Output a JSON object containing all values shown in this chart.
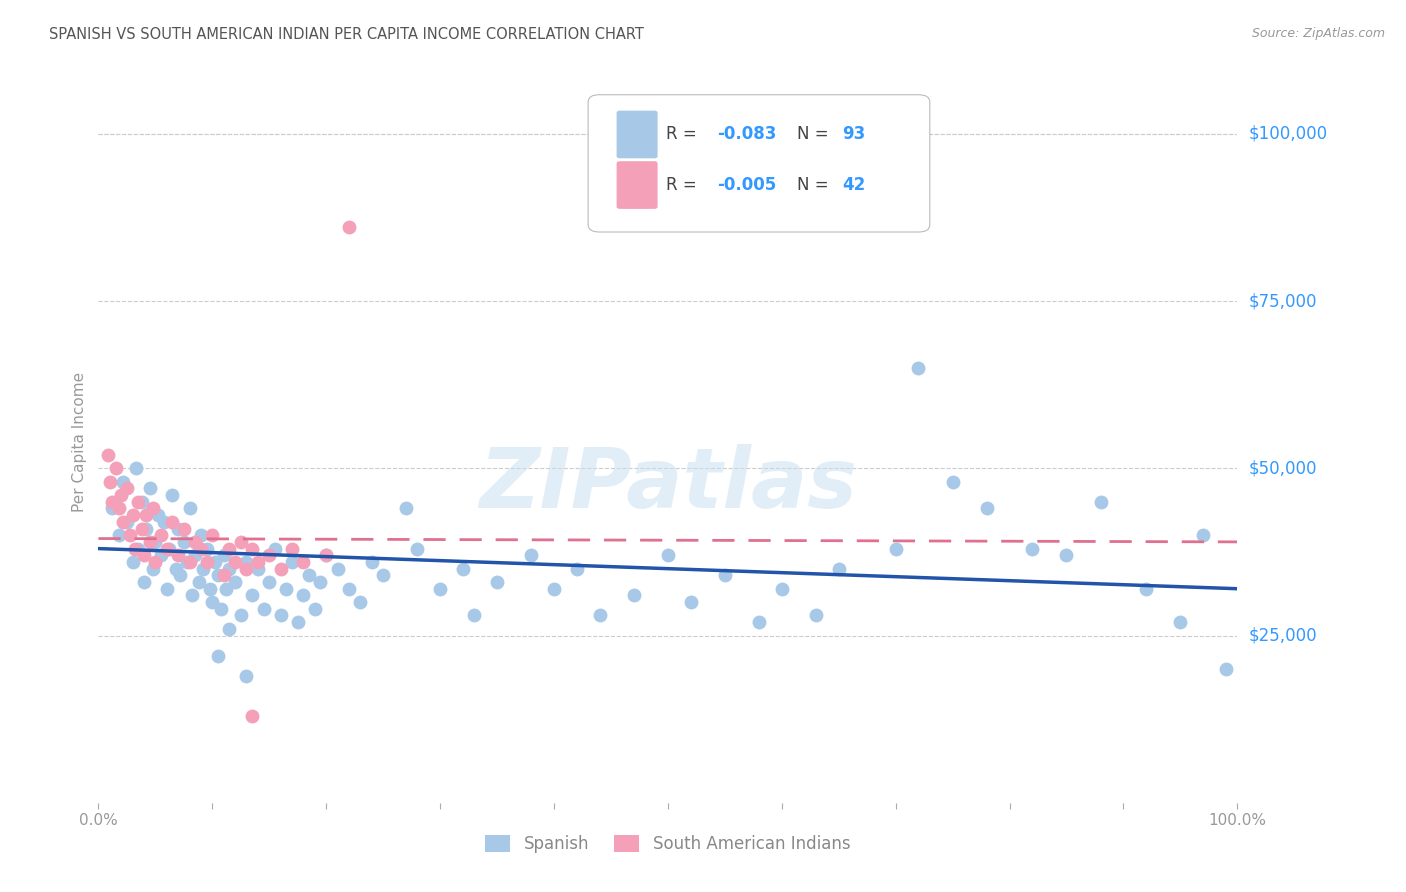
{
  "title": "SPANISH VS SOUTH AMERICAN INDIAN PER CAPITA INCOME CORRELATION CHART",
  "source": "Source: ZipAtlas.com",
  "ylabel": "Per Capita Income",
  "watermark": "ZIPatlas",
  "blue_color": "#a8c8e8",
  "pink_color": "#f4a0b8",
  "blue_line_color": "#2255aa",
  "pink_line_color": "#e07090",
  "axis_label_color": "#3399ff",
  "grid_color": "#cccccc",
  "ytick_labels": [
    "$25,000",
    "$50,000",
    "$75,000",
    "$100,000"
  ],
  "ytick_values": [
    25000,
    50000,
    75000,
    100000
  ],
  "ylim_max": 108000,
  "xlim": [
    0.0,
    1.0
  ],
  "blue_x": [
    0.012,
    0.018,
    0.022,
    0.025,
    0.03,
    0.033,
    0.035,
    0.038,
    0.04,
    0.042,
    0.045,
    0.048,
    0.05,
    0.052,
    0.055,
    0.058,
    0.06,
    0.062,
    0.065,
    0.068,
    0.07,
    0.072,
    0.075,
    0.078,
    0.08,
    0.082,
    0.085,
    0.088,
    0.09,
    0.092,
    0.095,
    0.098,
    0.1,
    0.102,
    0.105,
    0.108,
    0.11,
    0.112,
    0.115,
    0.12,
    0.125,
    0.13,
    0.135,
    0.14,
    0.145,
    0.15,
    0.155,
    0.16,
    0.165,
    0.17,
    0.175,
    0.18,
    0.185,
    0.19,
    0.195,
    0.2,
    0.21,
    0.22,
    0.23,
    0.24,
    0.25,
    0.27,
    0.28,
    0.3,
    0.32,
    0.33,
    0.35,
    0.38,
    0.4,
    0.42,
    0.44,
    0.47,
    0.5,
    0.52,
    0.55,
    0.58,
    0.6,
    0.63,
    0.65,
    0.7,
    0.72,
    0.75,
    0.78,
    0.82,
    0.85,
    0.88,
    0.92,
    0.95,
    0.97,
    0.99,
    0.105,
    0.115,
    0.13
  ],
  "blue_y": [
    44000,
    40000,
    48000,
    42000,
    36000,
    50000,
    38000,
    45000,
    33000,
    41000,
    47000,
    35000,
    39000,
    43000,
    37000,
    42000,
    32000,
    38000,
    46000,
    35000,
    41000,
    34000,
    39000,
    36000,
    44000,
    31000,
    37000,
    33000,
    40000,
    35000,
    38000,
    32000,
    30000,
    36000,
    34000,
    29000,
    37000,
    32000,
    35000,
    33000,
    28000,
    36000,
    31000,
    35000,
    29000,
    33000,
    38000,
    28000,
    32000,
    36000,
    27000,
    31000,
    34000,
    29000,
    33000,
    37000,
    35000,
    32000,
    30000,
    36000,
    34000,
    44000,
    38000,
    32000,
    35000,
    28000,
    33000,
    37000,
    32000,
    35000,
    28000,
    31000,
    37000,
    30000,
    34000,
    27000,
    32000,
    28000,
    35000,
    38000,
    65000,
    48000,
    44000,
    38000,
    37000,
    45000,
    32000,
    27000,
    40000,
    20000,
    22000,
    26000,
    19000
  ],
  "pink_x": [
    0.008,
    0.01,
    0.012,
    0.015,
    0.018,
    0.02,
    0.022,
    0.025,
    0.028,
    0.03,
    0.032,
    0.035,
    0.038,
    0.04,
    0.042,
    0.045,
    0.048,
    0.05,
    0.055,
    0.06,
    0.065,
    0.07,
    0.075,
    0.08,
    0.085,
    0.09,
    0.095,
    0.1,
    0.11,
    0.115,
    0.12,
    0.125,
    0.13,
    0.135,
    0.14,
    0.15,
    0.16,
    0.17,
    0.18,
    0.2,
    0.135,
    0.22
  ],
  "pink_y": [
    52000,
    48000,
    45000,
    50000,
    44000,
    46000,
    42000,
    47000,
    40000,
    43000,
    38000,
    45000,
    41000,
    37000,
    43000,
    39000,
    44000,
    36000,
    40000,
    38000,
    42000,
    37000,
    41000,
    36000,
    39000,
    38000,
    36000,
    40000,
    34000,
    38000,
    36000,
    39000,
    35000,
    38000,
    36000,
    37000,
    35000,
    38000,
    36000,
    37000,
    13000,
    86000
  ],
  "blue_trend_y0": 38000,
  "blue_trend_y1": 32000,
  "pink_trend_y0": 39500,
  "pink_trend_y1": 39000,
  "legend_r1": "R = ",
  "legend_v1": "-0.083",
  "legend_n1": "N = ",
  "legend_nv1": "93",
  "legend_r2": "R = ",
  "legend_v2": "-0.005",
  "legend_n2": "N = ",
  "legend_nv2": "42"
}
